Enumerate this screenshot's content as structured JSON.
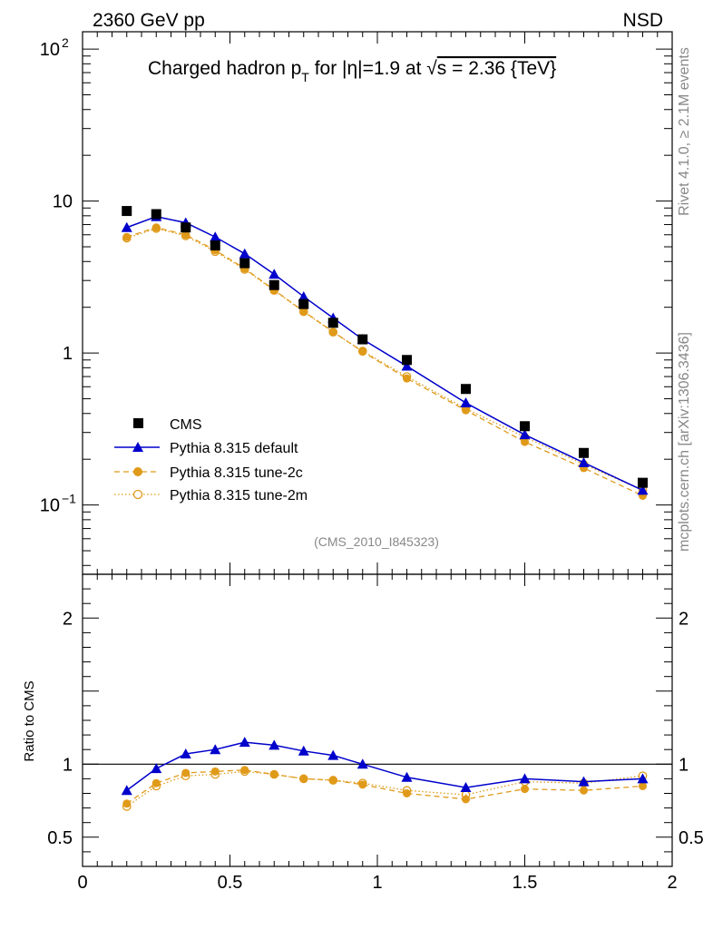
{
  "header": {
    "left": "2360 GeV pp",
    "right": "NSD"
  },
  "side_labels": {
    "rivet": "Rivet 4.1.0, ≥ 2.1M events",
    "mcplots": "mcplots.cern.ch [arXiv:1306.3436]"
  },
  "chart_data": {
    "type": "scatter",
    "title": "Charged hadron pT for |η|=1.9 at √s = 2.36 {TeV}",
    "title_parts": {
      "prefix": "Charged hadron p",
      "subscript": "T",
      "middle": " for |η|=1.9 at ",
      "sqrt": "√",
      "s_part": "s = 2.36 {TeV}"
    },
    "analysis_label": "(CMS_2010_I845323)",
    "xlabel": "",
    "ylabel": "",
    "ratio_ylabel": "Ratio to CMS",
    "xlim": [
      0,
      2
    ],
    "ylim": [
      0.035,
      130
    ],
    "yscale": "log",
    "ratio_ylim": [
      0.3,
      2.3
    ],
    "x_ticks": [
      0,
      0.5,
      1,
      1.5,
      2
    ],
    "x_tick_labels": [
      "0",
      "0.5",
      "1",
      "1.5",
      "2"
    ],
    "main_y_ticks": [
      {
        "value": 0.1,
        "base": "10",
        "exp": "−1"
      },
      {
        "value": 1,
        "base": "1",
        "exp": ""
      },
      {
        "value": 10,
        "base": "10",
        "exp": ""
      },
      {
        "value": 100,
        "base": "10",
        "exp": "2"
      }
    ],
    "ratio_y_ticks": [
      {
        "value": 0.5,
        "label": "0.5"
      },
      {
        "value": 1,
        "label": "1"
      },
      {
        "value": 2,
        "label": "2"
      }
    ],
    "legend_position": "lower-left",
    "x": [
      0.15,
      0.25,
      0.35,
      0.45,
      0.55,
      0.65,
      0.75,
      0.85,
      0.95,
      1.1,
      1.3,
      1.5,
      1.7,
      1.9
    ],
    "series": [
      {
        "name": "CMS",
        "style": "data",
        "color": "#000000",
        "values": [
          8.6,
          8.2,
          6.7,
          5.1,
          3.9,
          2.8,
          2.1,
          1.58,
          1.23,
          0.9,
          0.58,
          0.33,
          0.22,
          0.14
        ]
      },
      {
        "name": "Pythia 8.315 default",
        "style": "solid-triangle",
        "color": "#0000cc",
        "values": [
          6.7,
          7.9,
          7.2,
          5.8,
          4.5,
          3.3,
          2.35,
          1.7,
          1.23,
          0.82,
          0.47,
          0.29,
          0.19,
          0.125
        ],
        "ratio": [
          0.82,
          0.97,
          1.07,
          1.1,
          1.15,
          1.13,
          1.09,
          1.06,
          1.0,
          0.91,
          0.84,
          0.9,
          0.88,
          0.9
        ]
      },
      {
        "name": "Pythia 8.315 tune-2c",
        "style": "dashed-filled-circle",
        "color": "#e09a1a",
        "values": [
          5.8,
          6.7,
          6.0,
          4.75,
          3.6,
          2.6,
          1.88,
          1.38,
          1.02,
          0.68,
          0.42,
          0.26,
          0.175,
          0.115
        ],
        "ratio": [
          0.73,
          0.87,
          0.94,
          0.95,
          0.96,
          0.93,
          0.9,
          0.89,
          0.86,
          0.8,
          0.76,
          0.83,
          0.82,
          0.85
        ]
      },
      {
        "name": "Pythia 8.315 tune-2m",
        "style": "dotted-open-circle",
        "color": "#e09a1a",
        "values": [
          5.7,
          6.6,
          5.9,
          4.65,
          3.55,
          2.58,
          1.87,
          1.37,
          1.03,
          0.7,
          0.43,
          0.28,
          0.185,
          0.125
        ],
        "ratio": [
          0.71,
          0.85,
          0.92,
          0.93,
          0.95,
          0.93,
          0.9,
          0.89,
          0.87,
          0.82,
          0.79,
          0.88,
          0.87,
          0.92
        ]
      }
    ]
  }
}
